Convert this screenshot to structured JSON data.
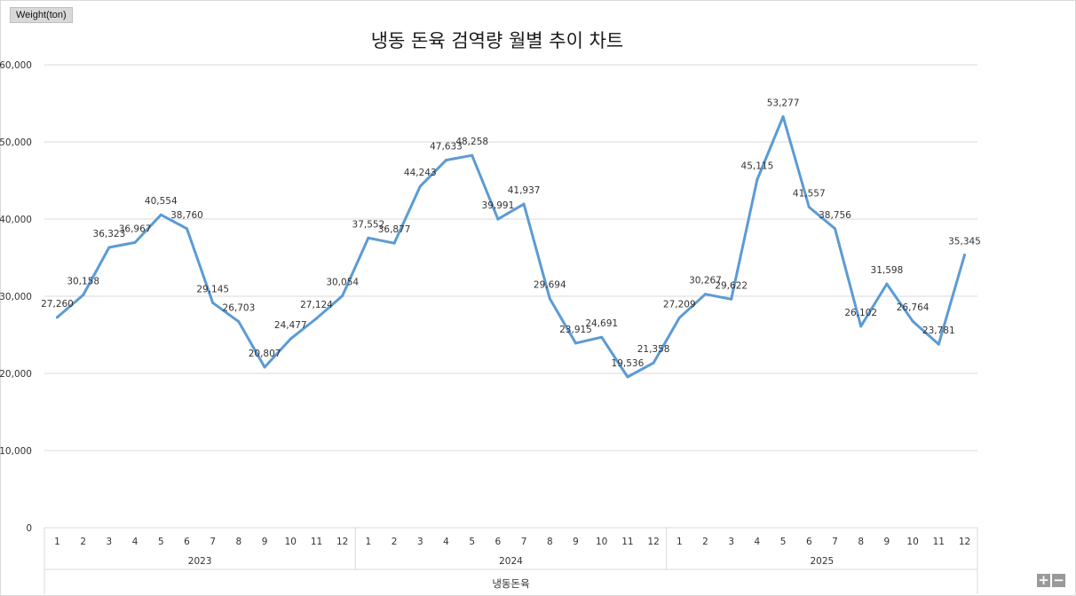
{
  "chart_data": {
    "type": "line",
    "title": "냉동 돈육 검역량 월별 추이 차트",
    "ylabel": "Weight(ton)",
    "xlabel": "냉동돈육",
    "ylim": [
      0,
      60000
    ],
    "yticks": [
      "0",
      "10,000",
      "20,000",
      "30,000",
      "40,000",
      "50,000",
      "60,000"
    ],
    "grid": "horizontal",
    "legend": "none",
    "line_color": "#5b9bd5",
    "years": [
      "2023",
      "2024",
      "2025"
    ],
    "months": [
      "1",
      "2",
      "3",
      "4",
      "5",
      "6",
      "7",
      "8",
      "9",
      "10",
      "11",
      "12"
    ],
    "values": [
      27260,
      30158,
      36323,
      36967,
      40554,
      38760,
      29145,
      26703,
      20807,
      24477,
      27124,
      30054,
      37552,
      36877,
      44243,
      47633,
      48258,
      39991,
      41937,
      29694,
      23915,
      24691,
      19536,
      21358,
      27209,
      30267,
      29622,
      45115,
      53277,
      41557,
      38756,
      26102,
      31598,
      26764,
      23781,
      35345
    ],
    "data_labels": [
      "27,260",
      "30,158",
      "36,323",
      "36,967",
      "40,554",
      "38,760",
      "29,145",
      "26,703",
      "20,807",
      "24,477",
      "27,124",
      "30,054",
      "37,552",
      "36,877",
      "44,243",
      "47,633",
      "48,258",
      "39,991",
      "41,937",
      "29,694",
      "23,915",
      "24,691",
      "19,536",
      "21,358",
      "27,209",
      "30,267",
      "29,622",
      "45,115",
      "53,277",
      "41,557",
      "38,756",
      "26,102",
      "31,598",
      "26,764",
      "23,781",
      "35,345"
    ]
  },
  "controls": {
    "zoom_in": "+",
    "zoom_out": "−"
  }
}
